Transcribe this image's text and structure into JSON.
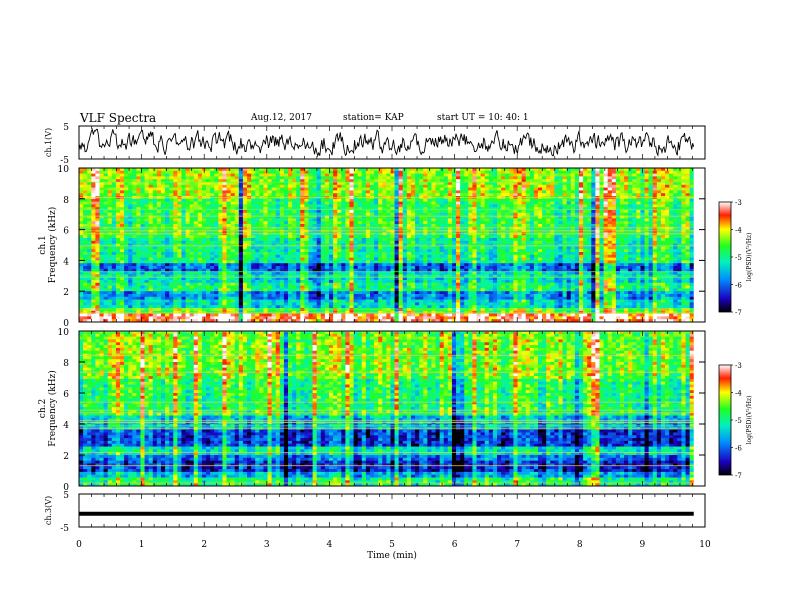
{
  "header": {
    "title": "VLF Spectra",
    "date": "Aug.12, 2017",
    "station": "station= KAP",
    "start_ut": "start  UT =   10: 40: 1"
  },
  "colors": {
    "spectrum_low": "#0000c0",
    "spectrum_mid": "#00e060",
    "spectrum_high": "#ff0000",
    "trace": "#000000",
    "frame": "#000000"
  },
  "chart_data": [
    {
      "type": "line",
      "panel": "ch1-waveform",
      "ylabel": "ch.1(V)",
      "ylim": [
        -5,
        5
      ],
      "yticks": [
        "5",
        "-5"
      ],
      "xlim": [
        0,
        10
      ],
      "x_extent_min": 9.82,
      "description_of_values": "noisy oscillating waveform amplitude roughly between -4 and 4 V",
      "amplitude_range": [
        -4,
        4
      ]
    },
    {
      "type": "heatmap",
      "panel": "ch1-spectrogram",
      "ylabel": "ch.1\nFrequency (kHz)",
      "ylim": [
        0,
        10
      ],
      "yticks": [
        "0",
        "2",
        "4",
        "6",
        "8",
        "10"
      ],
      "xlim": [
        0,
        10
      ],
      "colorbar": {
        "label": "log(PSD)(V²/Hz)",
        "range": [
          -7,
          -3
        ],
        "ticks": [
          "-3",
          "-4",
          "-5",
          "-6",
          "-7"
        ]
      },
      "bands_khz": [
        {
          "from": 0.0,
          "to": 0.6,
          "level": -3.3
        },
        {
          "from": 0.6,
          "to": 1.0,
          "level": -4.5
        },
        {
          "from": 1.0,
          "to": 1.5,
          "level": -5.3
        },
        {
          "from": 1.5,
          "to": 2.0,
          "level": -5.8
        },
        {
          "from": 2.0,
          "to": 2.5,
          "level": -4.9
        },
        {
          "from": 2.5,
          "to": 3.2,
          "level": -5.3
        },
        {
          "from": 3.2,
          "to": 3.8,
          "level": -6.0
        },
        {
          "from": 3.8,
          "to": 5.5,
          "level": -5.0
        },
        {
          "from": 5.5,
          "to": 8.0,
          "level": -4.7
        },
        {
          "from": 8.0,
          "to": 10.0,
          "level": -4.3
        }
      ]
    },
    {
      "type": "heatmap",
      "panel": "ch2-spectrogram",
      "ylabel": "ch.2\nFrequency (kHz)",
      "ylim": [
        0,
        10
      ],
      "yticks": [
        "0",
        "2",
        "4",
        "6",
        "8",
        "10"
      ],
      "xlim": [
        0,
        10
      ],
      "colorbar": {
        "label": "log(PSD)(V²/Hz)",
        "range": [
          -7,
          -3
        ],
        "ticks": [
          "-3",
          "-4",
          "-5",
          "-6",
          "-7"
        ]
      },
      "bands_khz": [
        {
          "from": 0.0,
          "to": 0.6,
          "level": -4.9
        },
        {
          "from": 0.6,
          "to": 1.0,
          "level": -5.6
        },
        {
          "from": 1.0,
          "to": 1.6,
          "level": -6.3
        },
        {
          "from": 1.6,
          "to": 2.0,
          "level": -5.9
        },
        {
          "from": 2.0,
          "to": 2.6,
          "level": -5.2
        },
        {
          "from": 2.6,
          "to": 3.6,
          "level": -6.2
        },
        {
          "from": 3.6,
          "to": 4.5,
          "level": -5.5
        },
        {
          "from": 4.5,
          "to": 7.0,
          "level": -4.8
        },
        {
          "from": 7.0,
          "to": 10.0,
          "level": -4.4
        }
      ]
    },
    {
      "type": "line",
      "panel": "ch3-waveform",
      "ylabel": "ch.3(V)",
      "ylim": [
        -5,
        5
      ],
      "yticks": [
        "5",
        "-5"
      ],
      "xlim": [
        0,
        10
      ],
      "x_extent_min": 9.82,
      "constant_value": -1.0,
      "xlabel": "Time (min)",
      "xticks": [
        "0",
        "1",
        "2",
        "3",
        "4",
        "5",
        "6",
        "7",
        "8",
        "9",
        "10"
      ]
    }
  ]
}
